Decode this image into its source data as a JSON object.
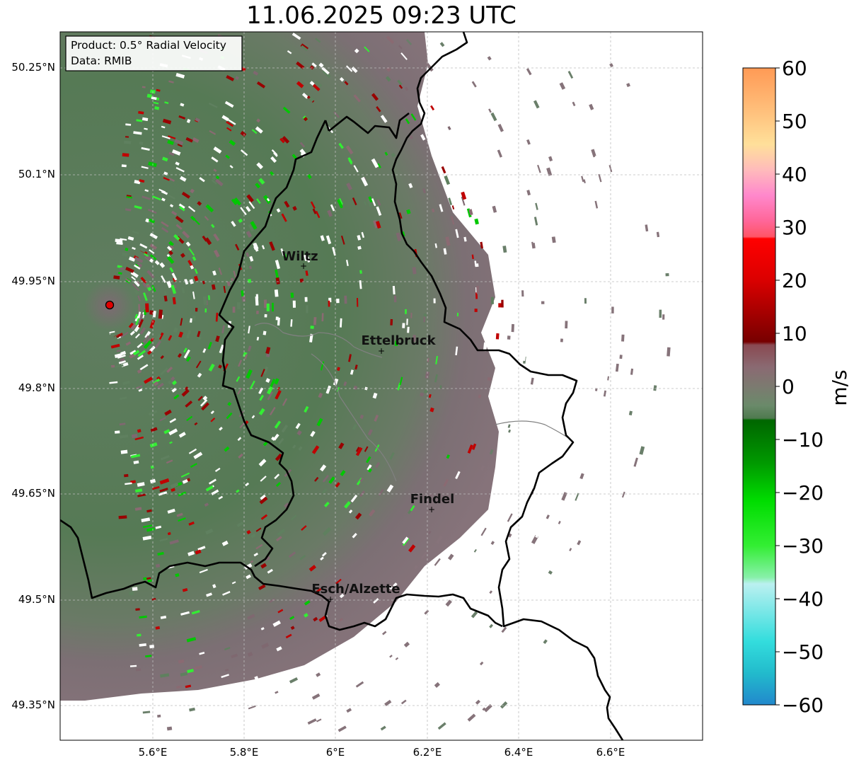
{
  "title": "11.06.2025 09:23 UTC",
  "info_box": {
    "product_line": "Product: 0.5° Radial Velocity",
    "data_line": "Data: RMIB"
  },
  "lat_ticks": [
    "50.25°N",
    "50.1°N",
    "49.95°N",
    "49.8°N",
    "49.65°N",
    "49.5°N",
    "49.35°N"
  ],
  "lon_ticks": [
    "5.6°E",
    "5.8°E",
    "6°E",
    "6.2°E",
    "6.4°E",
    "6.6°E"
  ],
  "cities": [
    {
      "name": "Wiltz"
    },
    {
      "name": "Ettelbruck"
    },
    {
      "name": "Findel"
    },
    {
      "name": "Esch/Alzette"
    }
  ],
  "colorbar": {
    "label": "m/s",
    "ticks": [
      "60",
      "50",
      "40",
      "30",
      "20",
      "10",
      "0",
      "−10",
      "−20",
      "−30",
      "−40",
      "−50",
      "−60"
    ],
    "min": -60,
    "max": 60
  },
  "colors": {
    "radar_site": "#e00000",
    "border": "#000000",
    "river": "#808080",
    "approaching_green": "#4f7a4f",
    "receding_mauve": "#8a6a72"
  }
}
